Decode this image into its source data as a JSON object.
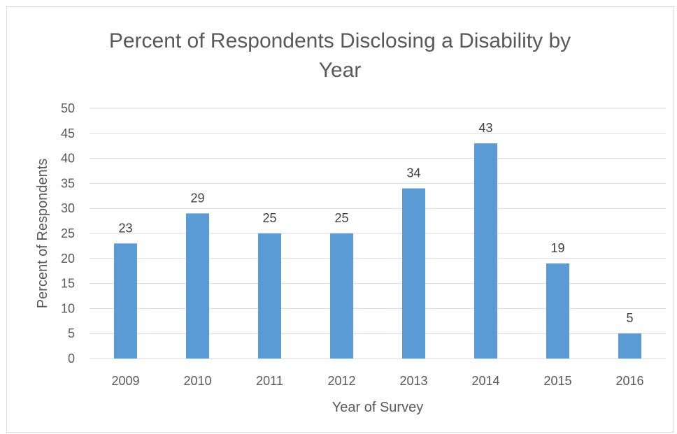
{
  "chart_data": {
    "type": "bar",
    "title_lines": [
      "Percent of Respondents Disclosing a Disability by",
      "Year"
    ],
    "xlabel": "Year of Survey",
    "ylabel": "Percent of Respondents",
    "categories": [
      "2009",
      "2010",
      "2011",
      "2012",
      "2013",
      "2014",
      "2015",
      "2016"
    ],
    "values": [
      23,
      29,
      25,
      25,
      34,
      43,
      19,
      5
    ],
    "ylim": [
      0,
      50
    ],
    "yticks": [
      "0",
      "5",
      "10",
      "15",
      "20",
      "25",
      "30",
      "35",
      "40",
      "45",
      "50"
    ],
    "data_labels": [
      "23",
      "29",
      "25",
      "25",
      "34",
      "43",
      "19",
      "5"
    ],
    "grid": true,
    "legend": "none",
    "bar_color": "#5b9bd5",
    "grid_color": "#d9d9d9"
  }
}
